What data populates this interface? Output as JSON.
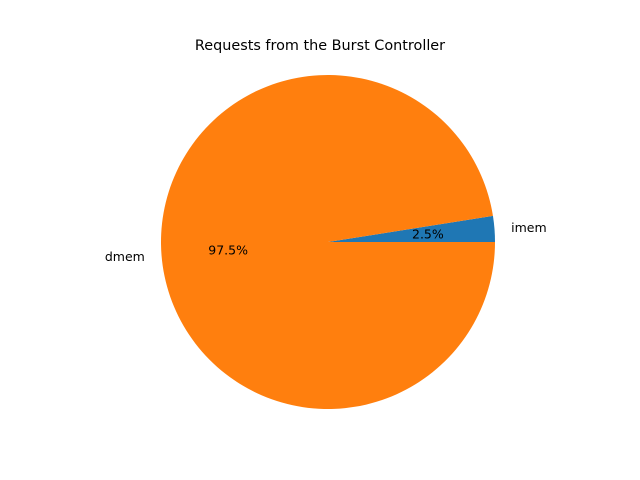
{
  "chart_data": {
    "type": "pie",
    "title": "Requests from the Burst Controller",
    "slices": [
      {
        "label": "imem",
        "value": 2.5,
        "percent_label": "2.5%",
        "color": "#1f77b4"
      },
      {
        "label": "dmem",
        "value": 97.5,
        "percent_label": "97.5%",
        "color": "#ff7f0e"
      }
    ],
    "start_angle_deg": 0,
    "direction": "counterclockwise",
    "legend": "none"
  }
}
